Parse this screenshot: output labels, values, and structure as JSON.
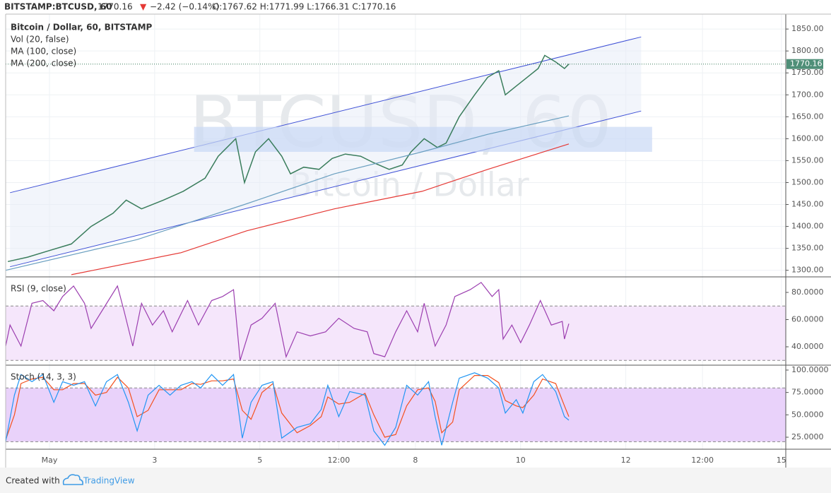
{
  "header": {
    "symbol": "BITSTAMP:BTCUSD, 60",
    "price": "1770.16",
    "arrow": "▼",
    "change": "−2.42 (−0.14%)",
    "ohlc": "O:1767.62 H:1771.99 L:1766.31 C:1770.16"
  },
  "chart_data": [
    {
      "type": "line",
      "title": "Bitcoin / Dollar, 60, BITSTAMP",
      "volume_label": "Vol (20, false)",
      "watermark": [
        "BTCUSD, 60",
        "Bitcoin / Dollar"
      ],
      "xlim": [
        0,
        356
      ],
      "xticks": [
        {
          "value": 20,
          "label": "May"
        },
        {
          "value": 68,
          "label": "3"
        },
        {
          "value": 116,
          "label": "5"
        },
        {
          "value": 152,
          "label": "12:00"
        },
        {
          "value": 187,
          "label": "8"
        },
        {
          "value": 235,
          "label": "10"
        },
        {
          "value": 283,
          "label": "12"
        },
        {
          "value": 318,
          "label": "12:00"
        },
        {
          "value": 354,
          "label": "15"
        }
      ],
      "ylim": [
        1285,
        1884
      ],
      "yticks": [
        {
          "value": 1300,
          "label": "1300.00"
        },
        {
          "value": 1350,
          "label": "1350.00"
        },
        {
          "value": 1400,
          "label": "1400.00"
        },
        {
          "value": 1450,
          "label": "1450.00"
        },
        {
          "value": 1500,
          "label": "1500.00"
        },
        {
          "value": 1550,
          "label": "1550.00"
        },
        {
          "value": 1600,
          "label": "1600.00"
        },
        {
          "value": 1650,
          "label": "1650.00"
        },
        {
          "value": 1700,
          "label": "1700.00"
        },
        {
          "value": 1750,
          "label": "1750.00"
        },
        {
          "value": 1800,
          "label": "1800.00"
        },
        {
          "value": 1850,
          "label": "1850.00"
        }
      ],
      "grid": true,
      "last_price": 1770.16,
      "channel": {
        "x": [
          2,
          290
        ],
        "upper": [
          1477,
          1832
        ],
        "lower": [
          1308,
          1663
        ],
        "color": "#3f51d6"
      },
      "zone": {
        "x": [
          86,
          295
        ],
        "y": [
          1570,
          1627
        ],
        "color": "#c9d8f5"
      },
      "series": [
        {
          "color": "#3a7d5c",
          "x": [
            1,
            10,
            20,
            30,
            39,
            49,
            55,
            62,
            72,
            81,
            91,
            97,
            105,
            109,
            114,
            120,
            126,
            130,
            136,
            143,
            149,
            155,
            162,
            168,
            175,
            181,
            185,
            191,
            197,
            201,
            207,
            214,
            220,
            225,
            228,
            233,
            238,
            243,
            246,
            251,
            255,
            257
          ],
          "values": [
            1320,
            1330,
            1345,
            1360,
            1400,
            1430,
            1460,
            1440,
            1460,
            1480,
            1510,
            1560,
            1600,
            1500,
            1570,
            1600,
            1560,
            1520,
            1535,
            1530,
            1555,
            1565,
            1560,
            1545,
            1530,
            1540,
            1570,
            1600,
            1580,
            1590,
            1650,
            1700,
            1740,
            1755,
            1700,
            1720,
            1740,
            1760,
            1790,
            1775,
            1760,
            1770.16
          ]
        },
        {
          "name": "MA (100, close)",
          "color": "#6a9fc0",
          "x": [
            0,
            60,
            109,
            150,
            190,
            220,
            257
          ],
          "values": [
            1300,
            1370,
            1450,
            1520,
            1570,
            1610,
            1652
          ]
        },
        {
          "name": "MA (200, close)",
          "color": "#e53935",
          "x": [
            30,
            80,
            110,
            150,
            190,
            220,
            257
          ],
          "values": [
            1290,
            1340,
            1390,
            1440,
            1480,
            1530,
            1588
          ]
        }
      ]
    },
    {
      "type": "line",
      "title": "RSI (9, close)",
      "ylim": [
        26.5,
        90.9
      ],
      "yticks": [
        {
          "value": 40,
          "label": "40.0000"
        },
        {
          "value": 60,
          "label": "60.0000"
        },
        {
          "value": 80,
          "label": "80.0000"
        }
      ],
      "band": [
        30,
        70
      ],
      "band_color": "#f5e6fb",
      "grid": false,
      "series": [
        {
          "color": "#9c3fb0",
          "x": [
            0,
            2,
            7,
            12,
            17,
            22,
            26,
            31,
            36,
            39,
            44,
            51,
            54,
            58,
            62,
            67,
            72,
            76,
            83,
            88,
            94,
            99,
            104,
            107,
            112,
            117,
            123,
            128,
            133,
            139,
            146,
            152,
            159,
            165,
            168,
            173,
            178,
            183,
            188,
            191,
            196,
            201,
            205,
            212,
            217,
            222,
            225,
            227,
            231,
            235,
            239,
            244,
            249,
            254,
            255,
            257
          ],
          "values": [
            40.5,
            56,
            40.5,
            72,
            74,
            66.5,
            77,
            84.7,
            72,
            53.5,
            66.5,
            84.7,
            66.5,
            40.5,
            72,
            56,
            66.5,
            51,
            74,
            56,
            74,
            77,
            82,
            30,
            56,
            61,
            72,
            32.7,
            51,
            48,
            51,
            61,
            53.5,
            51,
            35,
            32.7,
            51,
            66.5,
            51,
            72,
            40.5,
            56,
            77,
            82,
            87.3,
            77,
            82,
            45.7,
            56,
            43,
            56,
            74,
            56,
            58.7,
            45.7,
            57
          ]
        }
      ]
    },
    {
      "type": "line",
      "title": "Stoch (14, 3, 3)",
      "ylim": [
        11.6,
        104.7
      ],
      "yticks": [
        {
          "value": 25,
          "label": "25.0000"
        },
        {
          "value": 50,
          "label": "50.0000"
        },
        {
          "value": 75,
          "label": "75.0000"
        },
        {
          "value": 100,
          "label": "100.0000"
        }
      ],
      "band": [
        20,
        80
      ],
      "band_color": "#e9d2fa",
      "grid": false,
      "series": [
        {
          "color": "#f4511e",
          "x": [
            0,
            4,
            7,
            12,
            17,
            22,
            26,
            31,
            36,
            41,
            46,
            51,
            56,
            60,
            65,
            70,
            75,
            80,
            85,
            89,
            94,
            99,
            104,
            108,
            112,
            117,
            122,
            126,
            133,
            139,
            144,
            147,
            152,
            157,
            164,
            168,
            173,
            178,
            183,
            188,
            193,
            196,
            199,
            204,
            207,
            214,
            220,
            225,
            228,
            233,
            236,
            241,
            245,
            251,
            255,
            257
          ],
          "values": [
            22,
            50,
            85,
            90,
            92,
            78,
            78,
            85,
            85,
            72,
            75,
            92,
            80,
            48,
            55,
            78,
            78,
            78,
            85,
            84,
            88,
            88,
            90,
            55,
            45,
            75,
            85,
            52,
            30,
            38,
            48,
            70,
            62,
            64,
            74,
            50,
            25,
            28,
            60,
            78,
            80,
            65,
            30,
            42,
            78,
            94,
            94,
            86,
            66,
            60,
            58,
            72,
            90,
            85,
            60,
            48
          ]
        },
        {
          "color": "#2196f3",
          "x": [
            0,
            4,
            7,
            12,
            17,
            22,
            26,
            31,
            36,
            41,
            46,
            51,
            56,
            60,
            65,
            70,
            75,
            80,
            85,
            89,
            94,
            99,
            104,
            108,
            112,
            117,
            122,
            126,
            133,
            139,
            144,
            147,
            152,
            157,
            164,
            168,
            173,
            178,
            183,
            188,
            193,
            196,
            199,
            204,
            207,
            214,
            220,
            225,
            228,
            233,
            236,
            241,
            245,
            251,
            255,
            257
          ],
          "values": [
            20,
            72,
            95,
            87,
            95,
            64,
            87,
            83,
            87,
            60,
            87,
            95,
            64,
            32,
            72,
            83,
            72,
            83,
            87,
            80,
            95,
            83,
            95,
            24,
            64,
            83,
            87,
            24,
            36,
            40,
            56,
            83,
            48,
            76,
            72,
            32,
            16,
            36,
            83,
            72,
            87,
            48,
            16,
            64,
            91,
            97,
            91,
            80,
            52,
            67,
            52,
            87,
            95,
            76,
            48,
            44
          ]
        }
      ]
    }
  ],
  "footer": {
    "created": "Created with",
    "brand": "TradingView"
  }
}
